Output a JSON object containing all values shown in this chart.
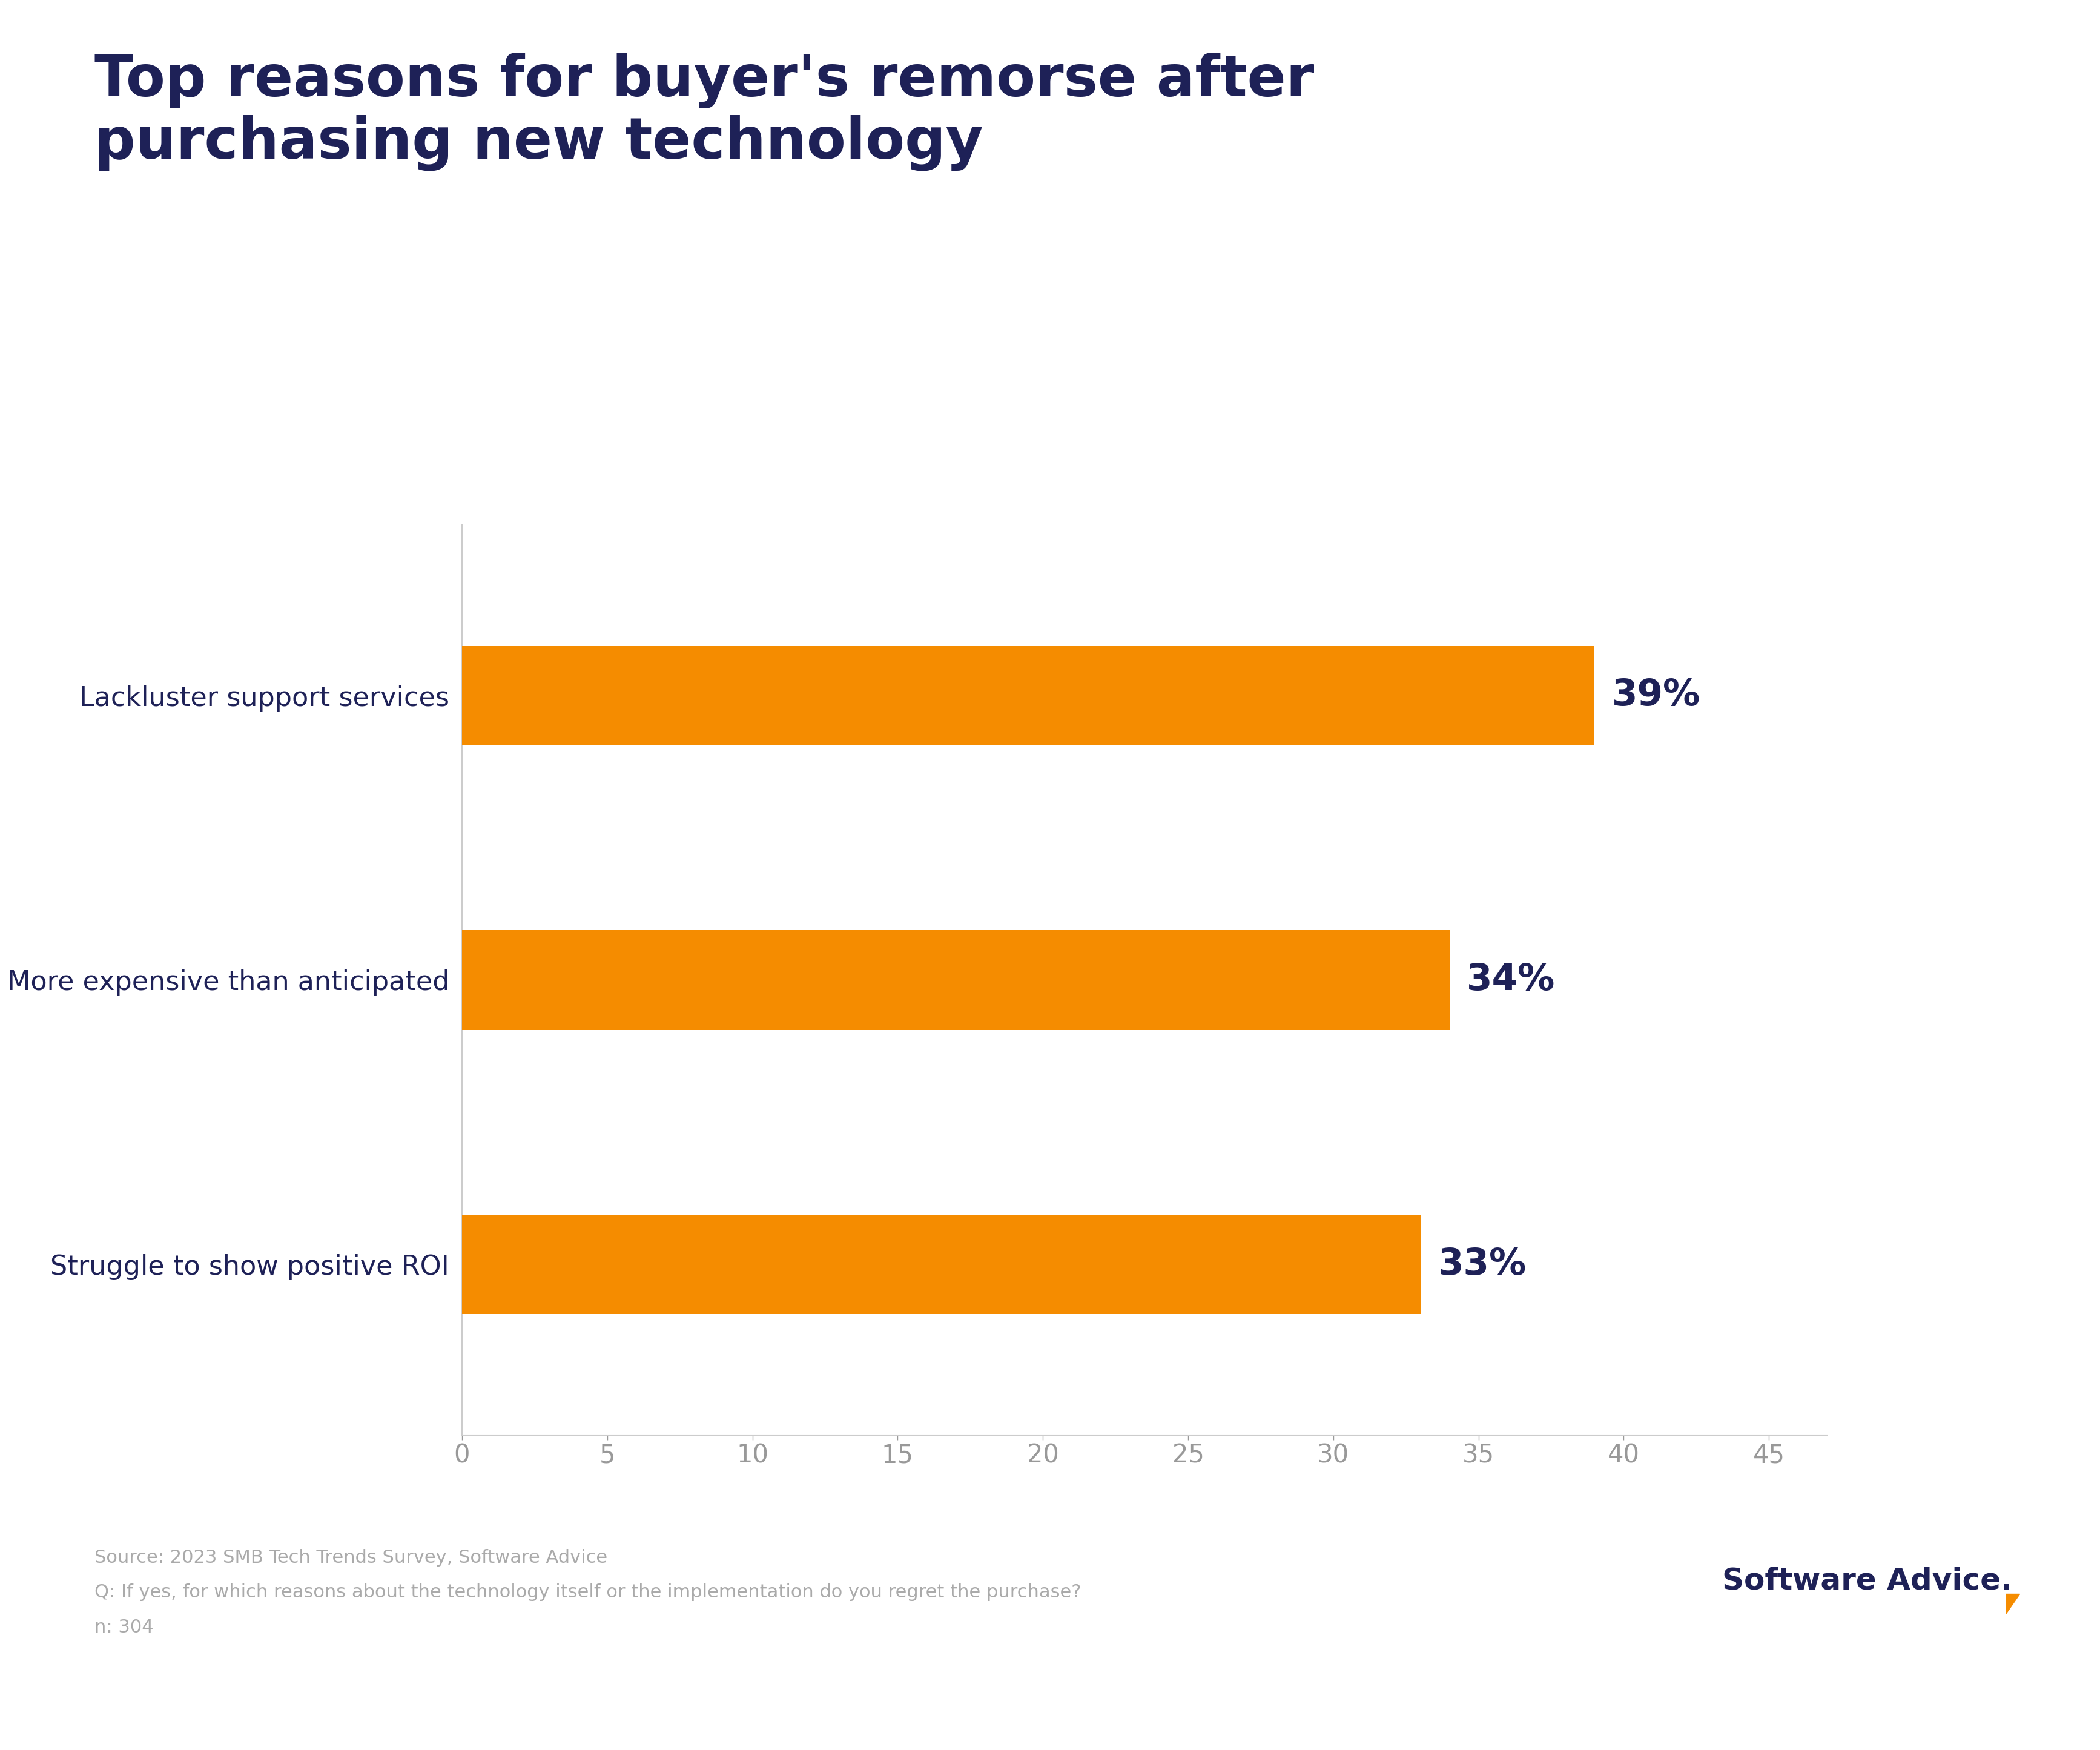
{
  "title": "Top reasons for buyer's remorse after\npurchasing new technology",
  "categories": [
    "Struggle to show positive ROI",
    "More expensive than anticipated",
    "Lackluster support services"
  ],
  "values": [
    33,
    34,
    39
  ],
  "labels": [
    "33%",
    "34%",
    "39%"
  ],
  "bar_color": "#F58C00",
  "title_color": "#1e2157",
  "label_color": "#1e2157",
  "ytick_color": "#1e2157",
  "xtick_color": "#999999",
  "background_color": "#ffffff",
  "spine_color": "#cccccc",
  "xlim": [
    0,
    47
  ],
  "xticks": [
    0,
    5,
    10,
    15,
    20,
    25,
    30,
    35,
    40,
    45
  ],
  "source_line1": "Source: 2023 SMB Tech Trends Survey, Software Advice",
  "source_line2": "Q: If yes, for which reasons about the technology itself or the implementation do you regret the purchase?",
  "source_line3": "n: 304",
  "logo_text": "Software Advice.",
  "title_fontsize": 68,
  "label_fontsize": 44,
  "ytick_fontsize": 32,
  "xtick_fontsize": 30,
  "source_fontsize": 22,
  "logo_fontsize": 36,
  "bar_height": 0.35
}
